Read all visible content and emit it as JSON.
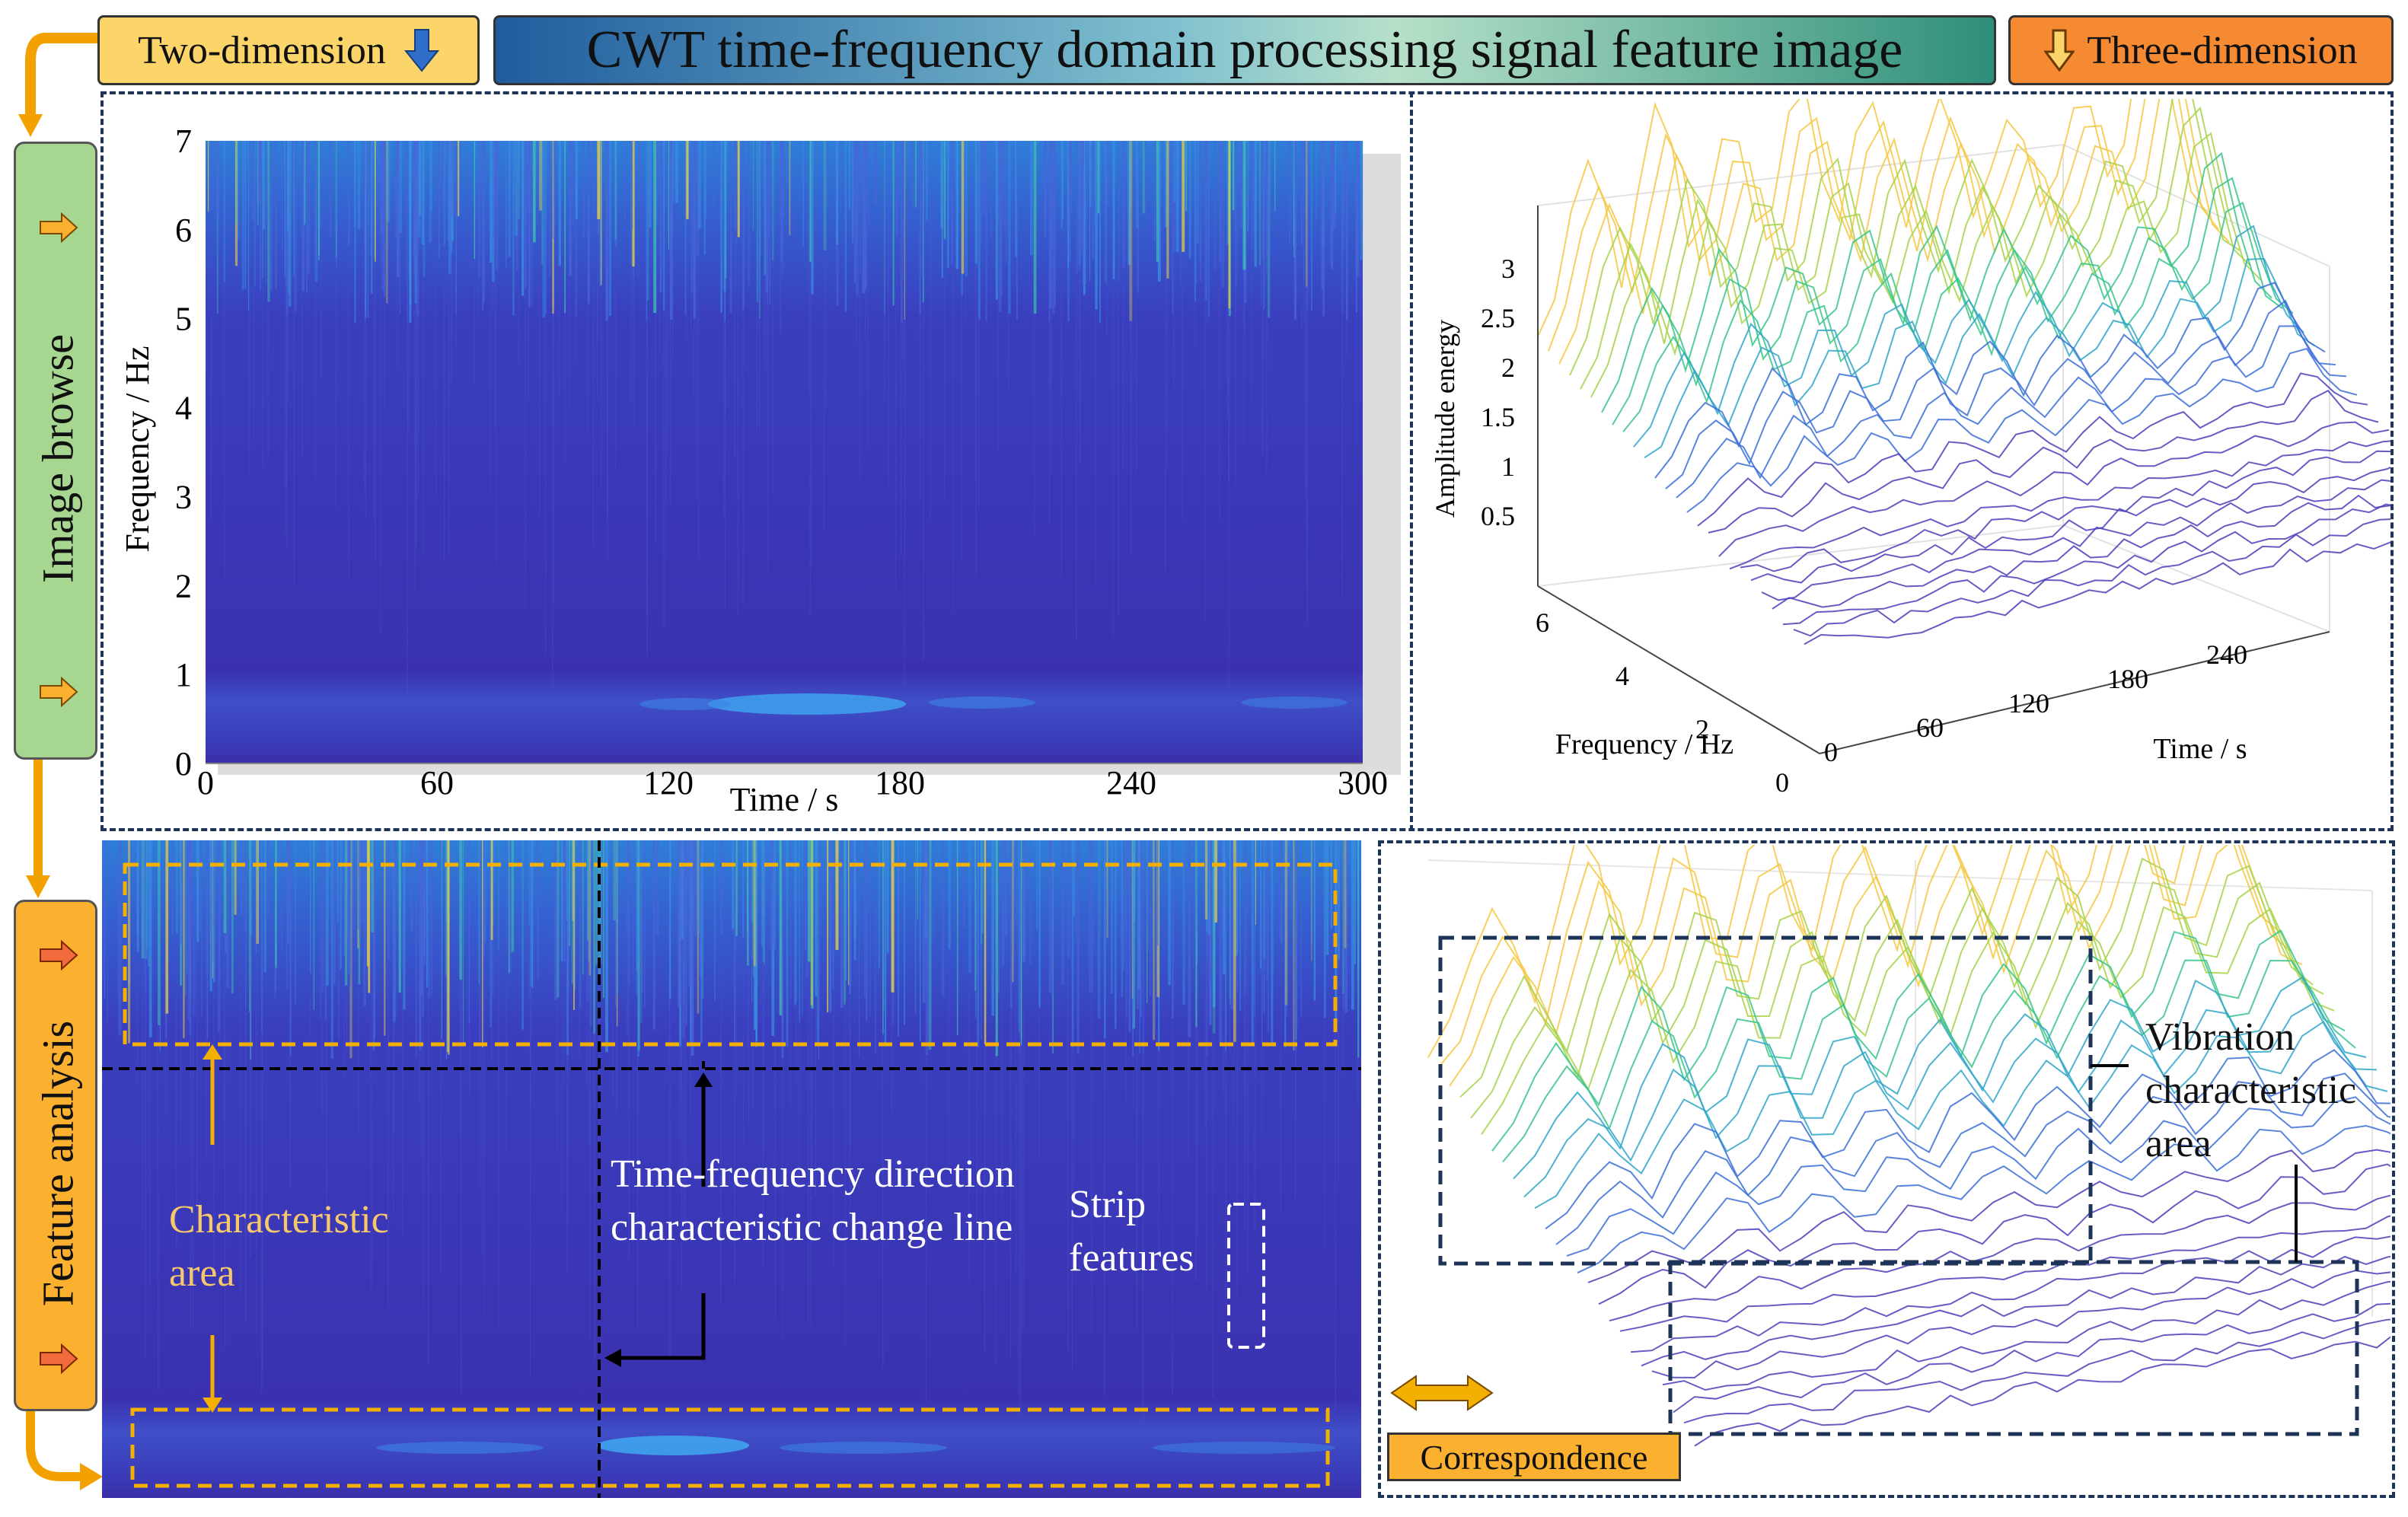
{
  "header": {
    "two_dimension": "Two-dimension",
    "title": "CWT time-frequency domain processing signal feature image",
    "three_dimension": "Three-dimension"
  },
  "sidebar": {
    "image_browse": "Image  browse",
    "feature_analysis": "Feature analysis"
  },
  "spectrogram_2d": {
    "xlabel": "Time / s",
    "ylabel": "Frequency / Hz",
    "xticks": [
      "0",
      "60",
      "120",
      "180",
      "240",
      "300"
    ],
    "yticks": [
      "0",
      "1",
      "2",
      "3",
      "4",
      "5",
      "6",
      "7"
    ]
  },
  "surface_3d": {
    "zlabel": "Amplitude energy",
    "xlabel": "Frequency / Hz",
    "ylabel": "Time / s",
    "zticks": [
      "0.5",
      "1",
      "1.5",
      "2",
      "2.5",
      "3"
    ],
    "freq_ticks": [
      "6",
      "4",
      "2",
      "0"
    ],
    "time_ticks": [
      "0",
      "60",
      "120",
      "180",
      "240"
    ]
  },
  "feature_panel": {
    "characteristic_area": "Characteristic area",
    "change_line": "Time-frequency direction characteristic change line",
    "strip_features": "Strip features",
    "vibration_area": "Vibration characteristic area",
    "correspondence": "Correspondence"
  },
  "chart_data": [
    {
      "type": "heatmap",
      "title": "",
      "xlabel": "Time / s",
      "ylabel": "Frequency / Hz",
      "xlim": [
        0,
        300
      ],
      "ylim": [
        0,
        7
      ],
      "x_ticks": [
        0,
        60,
        120,
        180,
        240,
        300
      ],
      "y_ticks": [
        0,
        1,
        2,
        3,
        4,
        5,
        6,
        7
      ]
    },
    {
      "type": "surface",
      "zlabel": "Amplitude energy",
      "xlabel": "Frequency / Hz",
      "ylabel": "Time / s",
      "z_ticks": [
        0.5,
        1,
        1.5,
        2,
        2.5,
        3
      ],
      "freq_ticks": [
        6,
        4,
        2,
        0
      ],
      "time_ticks": [
        0,
        60,
        120,
        180,
        240
      ]
    }
  ],
  "colors": {
    "spectro_dark": "#3b28a8",
    "spectro_mid": "#2f6fdc",
    "peak_yellow": "#f5c842",
    "peak_green": "#38c48a",
    "panel_border": "#1d3357",
    "yellow_tag": "#fbd56a",
    "orange_tag": "#f58a32",
    "green_side": "#a7d691",
    "orange_side": "#fbb12f"
  }
}
